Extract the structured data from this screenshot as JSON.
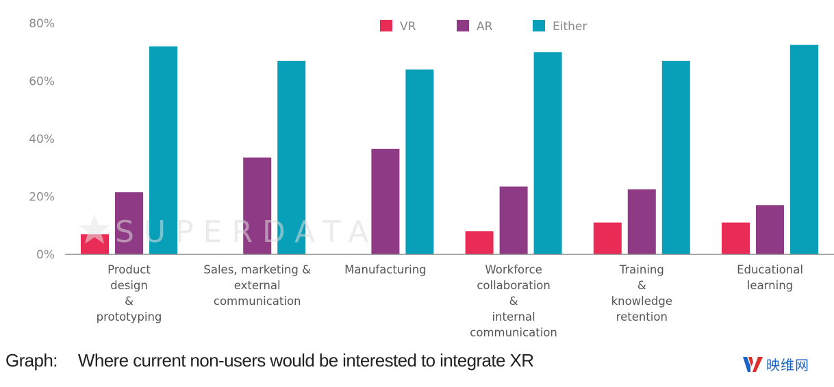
{
  "chart_data": {
    "type": "bar",
    "title": "",
    "xlabel": "",
    "ylabel": "",
    "ylim": [
      0,
      80
    ],
    "yticks": [
      0,
      20,
      40,
      60,
      80
    ],
    "ytick_labels": [
      "0%",
      "20%",
      "40%",
      "60%",
      "80%"
    ],
    "grid": false,
    "legend_position": "top-right",
    "categories": [
      [
        "Product",
        "design",
        "&",
        "prototyping"
      ],
      [
        "Sales, marketing &",
        "external",
        "communication"
      ],
      [
        "Manufacturing"
      ],
      [
        "Workforce",
        "collaboration",
        "&",
        "internal",
        "communication"
      ],
      [
        "Training",
        "&",
        "knowledge",
        "retention"
      ],
      [
        "Educational",
        "learning"
      ]
    ],
    "series": [
      {
        "name": "VR",
        "color": "#e82c55",
        "values": [
          7,
          0,
          0,
          8,
          11,
          11
        ]
      },
      {
        "name": "AR",
        "color": "#8e3a85",
        "values": [
          21.5,
          33.5,
          36.5,
          23.5,
          22.5,
          17
        ]
      },
      {
        "name": "Either",
        "color": "#08a0b8",
        "values": [
          72,
          67,
          64,
          70,
          67,
          72.5
        ]
      }
    ],
    "watermark": "SUPERDATA"
  },
  "caption": {
    "prefix": "Graph:",
    "text": "Where current non-users would be interested to integrate XR"
  },
  "brand": {
    "name": "映维网",
    "logo_icon": "yivian-logo-icon"
  }
}
